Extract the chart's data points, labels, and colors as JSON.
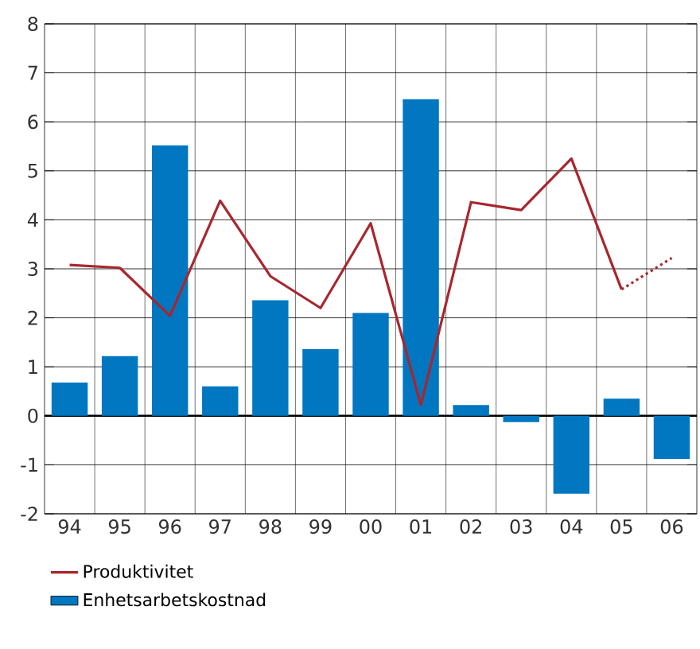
{
  "chart_data": {
    "type": "bar",
    "categories": [
      "94",
      "95",
      "96",
      "97",
      "98",
      "99",
      "00",
      "01",
      "02",
      "03",
      "04",
      "05",
      "06"
    ],
    "series": [
      {
        "name": "Enhetsarbetskostnad",
        "color": "#0077c0",
        "values": [
          0.68,
          1.22,
          5.52,
          0.6,
          2.36,
          1.36,
          2.1,
          6.46,
          0.22,
          -0.13,
          -1.59,
          0.35,
          -0.88
        ]
      },
      {
        "name": "Produktivitet",
        "type": "line",
        "color": "#a8262e",
        "line_style": "solid",
        "values": [
          3.08,
          3.02,
          2.04,
          4.39,
          2.85,
          2.2,
          3.93,
          0.22,
          4.36,
          4.2,
          5.25,
          2.58,
          null
        ]
      },
      {
        "type": "line",
        "color": "#a8262e",
        "line_style": "dotted",
        "values": [
          null,
          null,
          null,
          null,
          null,
          null,
          null,
          null,
          null,
          null,
          null,
          2.58,
          3.22
        ]
      }
    ],
    "ylim": [
      -2,
      8
    ],
    "yticks": [
      -2,
      -1,
      0,
      1,
      2,
      3,
      4,
      5,
      6,
      7,
      8
    ],
    "grid": true,
    "legend": "bottom",
    "marker": "none"
  }
}
